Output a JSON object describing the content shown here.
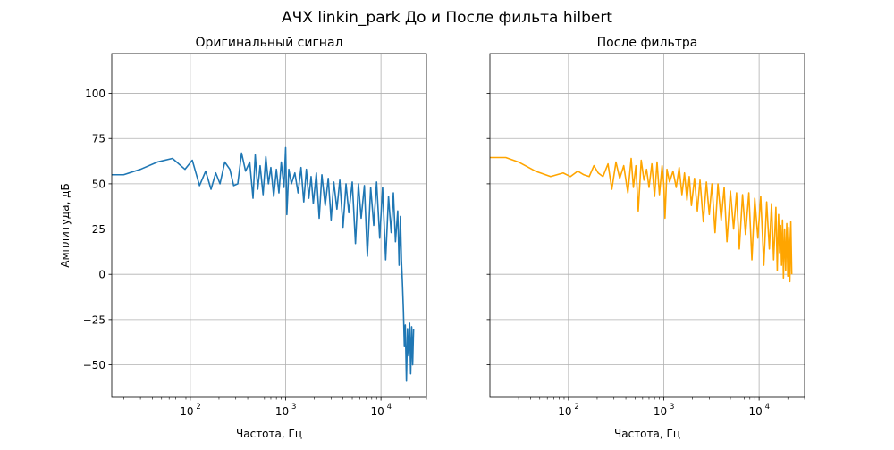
{
  "figure": {
    "suptitle": "АЧХ linkin_park До и После фильта hilbert"
  },
  "chart_data": [
    {
      "type": "line",
      "title": "Оригинальный сигнал",
      "xlabel": "Частота, Гц",
      "ylabel": "Амплитуда, дБ",
      "x_scale": "log",
      "xlim": [
        15,
        30000
      ],
      "ylim": [
        -68,
        122
      ],
      "x_ticks": [
        100,
        1000,
        10000
      ],
      "x_tick_labels": [
        [
          "10",
          "2"
        ],
        [
          "10",
          "3"
        ],
        [
          "10",
          "4"
        ]
      ],
      "y_ticks": [
        -50,
        -25,
        0,
        25,
        50,
        75,
        100
      ],
      "y_tick_labels": [
        "−50",
        "−25",
        "0",
        "25",
        "50",
        "75",
        "100"
      ],
      "grid": true,
      "color": "#1f77b4",
      "series": [
        {
          "x": [
            15,
            20,
            30,
            45,
            65,
            88,
            105,
            125,
            145,
            165,
            185,
            205,
            230,
            260,
            285,
            315,
            345,
            380,
            420,
            455,
            480,
            510,
            540,
            580,
            620,
            660,
            700,
            750,
            800,
            850,
            900,
            960,
            1000,
            1030,
            1080,
            1150,
            1250,
            1350,
            1450,
            1550,
            1650,
            1750,
            1850,
            1950,
            2100,
            2250,
            2400,
            2600,
            2800,
            3000,
            3200,
            3450,
            3700,
            4000,
            4300,
            4600,
            5000,
            5400,
            5800,
            6200,
            6700,
            7200,
            7800,
            8400,
            9000,
            9700,
            10400,
            11200,
            12000,
            12800,
            13500,
            14200,
            15000,
            15500,
            16000,
            16400,
            16800,
            17200,
            17600,
            18000,
            18500,
            19000,
            19500,
            20000,
            20500,
            21000,
            21500,
            22000
          ],
          "y": [
            55,
            55,
            58,
            62,
            64,
            58,
            63,
            49,
            57,
            47,
            56,
            50,
            62,
            58,
            49,
            50,
            67,
            57,
            62,
            42,
            66,
            47,
            60,
            44,
            65,
            50,
            59,
            43,
            58,
            45,
            62,
            48,
            70,
            33,
            58,
            50,
            56,
            45,
            59,
            40,
            58,
            42,
            54,
            39,
            56,
            31,
            55,
            38,
            53,
            30,
            51,
            36,
            52,
            26,
            50,
            34,
            51,
            17,
            50,
            31,
            49,
            10,
            48,
            27,
            51,
            20,
            48,
            8,
            43,
            23,
            45,
            18,
            35,
            5,
            32,
            8,
            -5,
            -20,
            -40,
            -28,
            -59,
            -30,
            -45,
            -27,
            -55,
            -29,
            -50,
            -30
          ]
        }
      ]
    },
    {
      "type": "line",
      "title": "После фильтра",
      "xlabel": "Частота, Гц",
      "ylabel": "",
      "x_scale": "log",
      "xlim": [
        15,
        30000
      ],
      "ylim": [
        -68,
        122
      ],
      "x_ticks": [
        100,
        1000,
        10000
      ],
      "x_tick_labels": [
        [
          "10",
          "2"
        ],
        [
          "10",
          "3"
        ],
        [
          "10",
          "4"
        ]
      ],
      "y_ticks": [
        -50,
        -25,
        0,
        25,
        50,
        75,
        100
      ],
      "grid": true,
      "color": "#ffa500",
      "series": [
        {
          "x": [
            15,
            22,
            30,
            45,
            65,
            88,
            105,
            125,
            145,
            165,
            185,
            205,
            230,
            260,
            285,
            315,
            345,
            380,
            420,
            455,
            480,
            510,
            540,
            580,
            620,
            660,
            700,
            750,
            800,
            850,
            900,
            960,
            1000,
            1030,
            1080,
            1150,
            1250,
            1350,
            1450,
            1550,
            1650,
            1750,
            1850,
            1950,
            2100,
            2250,
            2400,
            2600,
            2800,
            3000,
            3200,
            3450,
            3700,
            4000,
            4300,
            4600,
            5000,
            5400,
            5800,
            6200,
            6700,
            7200,
            7800,
            8400,
            9000,
            9700,
            10400,
            11200,
            12000,
            12800,
            13500,
            14200,
            15000,
            15500,
            16000,
            16400,
            16800,
            17200,
            17600,
            18000,
            18500,
            19000,
            19500,
            20000,
            20500,
            21000,
            21500,
            22000
          ],
          "y": [
            64.5,
            64.5,
            62,
            57,
            54,
            56,
            54,
            57,
            55,
            54,
            60,
            56,
            54,
            61,
            47,
            62,
            53,
            60,
            45,
            64,
            48,
            60,
            35,
            63,
            52,
            58,
            48,
            61,
            43,
            62,
            44,
            60,
            50,
            31,
            58,
            51,
            57,
            48,
            59,
            44,
            56,
            41,
            54,
            38,
            53,
            35,
            52,
            29,
            51,
            33,
            50,
            23,
            50,
            30,
            48,
            18,
            46,
            25,
            45,
            14,
            44,
            22,
            45,
            8,
            42,
            20,
            43,
            5,
            40,
            14,
            39,
            8,
            37,
            2,
            33,
            12,
            27,
            5,
            30,
            -2,
            25,
            2,
            28,
            -1,
            26,
            -4,
            29,
            0
          ]
        }
      ]
    }
  ]
}
